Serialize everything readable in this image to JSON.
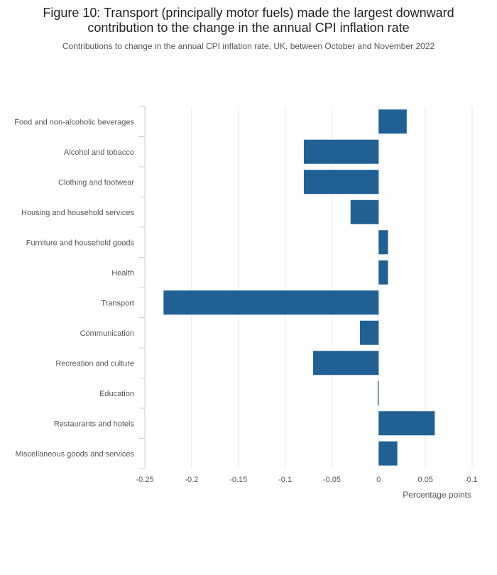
{
  "chart_data": {
    "type": "bar",
    "orientation": "horizontal",
    "title": "Figure 10: Transport (principally motor fuels) made the largest downward contribution to the change in the annual CPI inflation rate",
    "subtitle": "Contributions to change in the annual CPI inflation rate, UK, between October and November 2022",
    "xlabel": "Percentage points",
    "ylabel": "",
    "categories": [
      "Food and non-alcoholic beverages",
      "Alcohol and tobacco",
      "Clothing and footwear",
      "Housing and household services",
      "Furniture and household goods",
      "Health",
      "Transport",
      "Communication",
      "Recreation and culture",
      "Education",
      "Restaurants and hotels",
      "Miscellaneous goods and services"
    ],
    "values": [
      0.03,
      -0.08,
      -0.08,
      -0.03,
      0.01,
      0.01,
      -0.23,
      -0.02,
      -0.07,
      -0.001,
      0.06,
      0.02
    ],
    "xlim": [
      -0.25,
      0.1
    ],
    "xticks": [
      -0.25,
      -0.2,
      -0.15,
      -0.1,
      -0.05,
      0,
      0.05,
      0.1
    ],
    "xtick_labels": [
      "-0.25",
      "-0.2",
      "-0.15",
      "-0.1",
      "-0.05",
      "0",
      "0.05",
      "0.1"
    ],
    "grid": true,
    "bar_color": "#206095",
    "grid_color": "#e6e6e6"
  }
}
